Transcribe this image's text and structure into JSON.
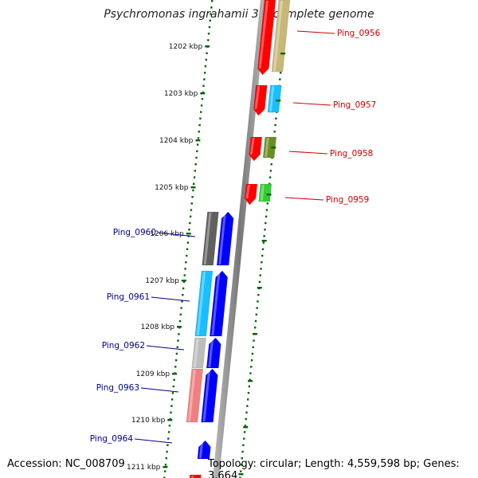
{
  "header": {
    "title": "Psychromonas ingrahamii 37, complete genome"
  },
  "footer": {
    "accession": "Accession: NC_008709",
    "topology": "Topology: circular; Length: 4,559,598 bp; Genes: 3,664"
  },
  "ticks": [
    "1202 kbp",
    "1203 kbp",
    "1204 kbp",
    "1205 kbp",
    "1206 kbp",
    "1207 kbp",
    "1208 kbp",
    "1209 kbp",
    "1210 kbp",
    "1211 kbp"
  ],
  "genes_reverse": [
    "Ping_0956",
    "Ping_0957",
    "Ping_0958",
    "Ping_0959"
  ],
  "genes_forward": [
    "Ping_0960",
    "Ping_0961",
    "Ping_0962",
    "Ping_0963",
    "Ping_0964"
  ],
  "colors": {
    "reverse_strand": "#ff0000",
    "forward_strand": "#0000ff",
    "backbone": "#8c8c8c",
    "tick": "#006400",
    "label_reverse": "#cc0000",
    "label_forward": "#00008b",
    "cog_khaki": "#c8b878",
    "cog_cyan": "#19bfff",
    "cog_olive": "#6b8e23",
    "cog_green": "#33cc33",
    "cog_darkgray": "#606060",
    "cog_lightgray": "#bdbdbd",
    "cog_salmon": "#f08080"
  }
}
